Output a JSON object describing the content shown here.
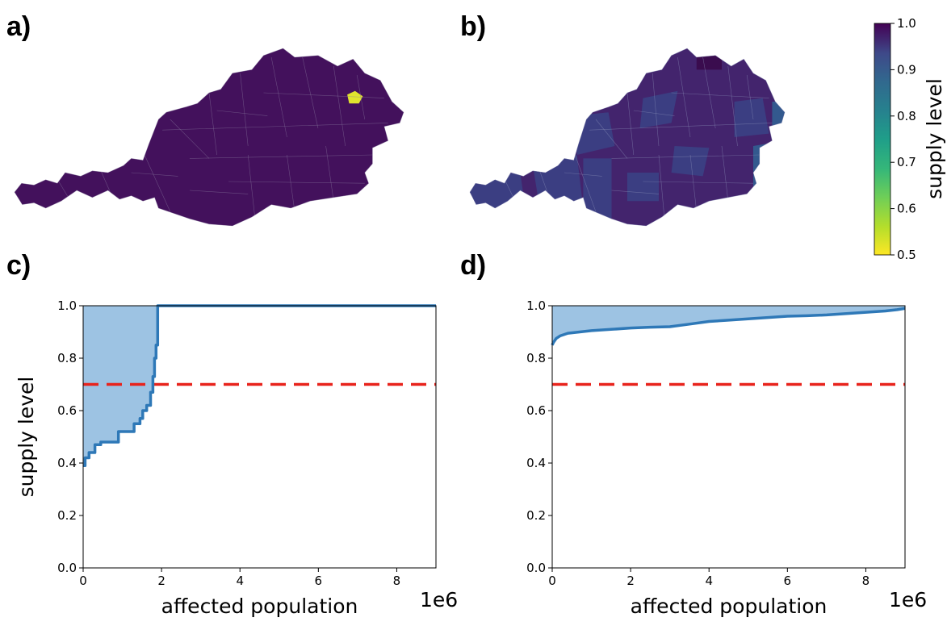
{
  "panels": {
    "a": "a)",
    "b": "b)",
    "c": "c)",
    "d": "d)"
  },
  "colorbar": {
    "label": "supply level",
    "ticks": [
      "1.0",
      "0.9",
      "0.8",
      "0.7",
      "0.6",
      "0.5"
    ],
    "range": [
      0.5,
      1.0
    ],
    "colormap": "viridis (reversed)"
  },
  "chart_data": [
    {
      "panel": "a",
      "type": "map",
      "region": "Austria",
      "description_values": {
        "base_supply_level": 1.0,
        "min_supply_level": 0.5
      },
      "colors": {
        "base": "#43115c",
        "hotspot": "#e0e32e"
      }
    },
    {
      "panel": "b",
      "type": "map",
      "region": "Austria",
      "description_values": {
        "base_supply_level": 0.96,
        "min_supply_level": 0.85
      },
      "colors": {
        "base": "#43246d",
        "mid": "#3b3e82",
        "low": "#33598e"
      }
    },
    {
      "panel": "c",
      "type": "area",
      "xlabel": "affected population",
      "ylabel": "supply level",
      "x_multiplier": "1e6",
      "xlim": [
        0,
        9
      ],
      "ylim": [
        0,
        1.0
      ],
      "xticks": [
        "0",
        "2",
        "4",
        "6",
        "8"
      ],
      "yticks": [
        "0.0",
        "0.2",
        "0.4",
        "0.6",
        "0.8",
        "1.0"
      ],
      "threshold": 0.7,
      "x": [
        0,
        0.05,
        0.05,
        0.15,
        0.15,
        0.3,
        0.3,
        0.45,
        0.45,
        0.9,
        0.9,
        1.3,
        1.3,
        1.45,
        1.45,
        1.52,
        1.52,
        1.62,
        1.62,
        1.72,
        1.72,
        1.78,
        1.78,
        1.82,
        1.82,
        1.86,
        1.86,
        1.9,
        1.9,
        9
      ],
      "y": [
        0.39,
        0.39,
        0.42,
        0.42,
        0.44,
        0.44,
        0.47,
        0.47,
        0.48,
        0.48,
        0.52,
        0.52,
        0.55,
        0.55,
        0.57,
        0.57,
        0.6,
        0.6,
        0.62,
        0.62,
        0.67,
        0.67,
        0.73,
        0.73,
        0.8,
        0.8,
        0.85,
        0.85,
        1.0,
        1.0
      ],
      "colors": {
        "line": "#2e78b7",
        "fill": "#9dc3e3",
        "threshold": "#e8231c"
      }
    },
    {
      "panel": "d",
      "type": "area",
      "xlabel": "affected population",
      "ylabel": "",
      "x_multiplier": "1e6",
      "xlim": [
        0,
        9
      ],
      "ylim": [
        0,
        1.0
      ],
      "xticks": [
        "0",
        "2",
        "4",
        "6",
        "8"
      ],
      "yticks": [
        "0.0",
        "0.2",
        "0.4",
        "0.6",
        "0.8",
        "1.0"
      ],
      "threshold": 0.7,
      "x": [
        0,
        0.03,
        0.1,
        0.2,
        0.4,
        0.7,
        1.0,
        1.5,
        2.0,
        2.5,
        3.0,
        3.5,
        4.0,
        4.5,
        5.0,
        5.5,
        6.0,
        6.5,
        7.0,
        7.5,
        8.0,
        8.5,
        8.8,
        9.0
      ],
      "y": [
        0.85,
        0.86,
        0.875,
        0.885,
        0.895,
        0.9,
        0.905,
        0.91,
        0.915,
        0.918,
        0.92,
        0.93,
        0.94,
        0.945,
        0.95,
        0.955,
        0.96,
        0.962,
        0.965,
        0.97,
        0.975,
        0.98,
        0.985,
        0.99
      ],
      "colors": {
        "line": "#2e78b7",
        "fill": "#9dc3e3",
        "threshold": "#e8231c"
      }
    }
  ]
}
